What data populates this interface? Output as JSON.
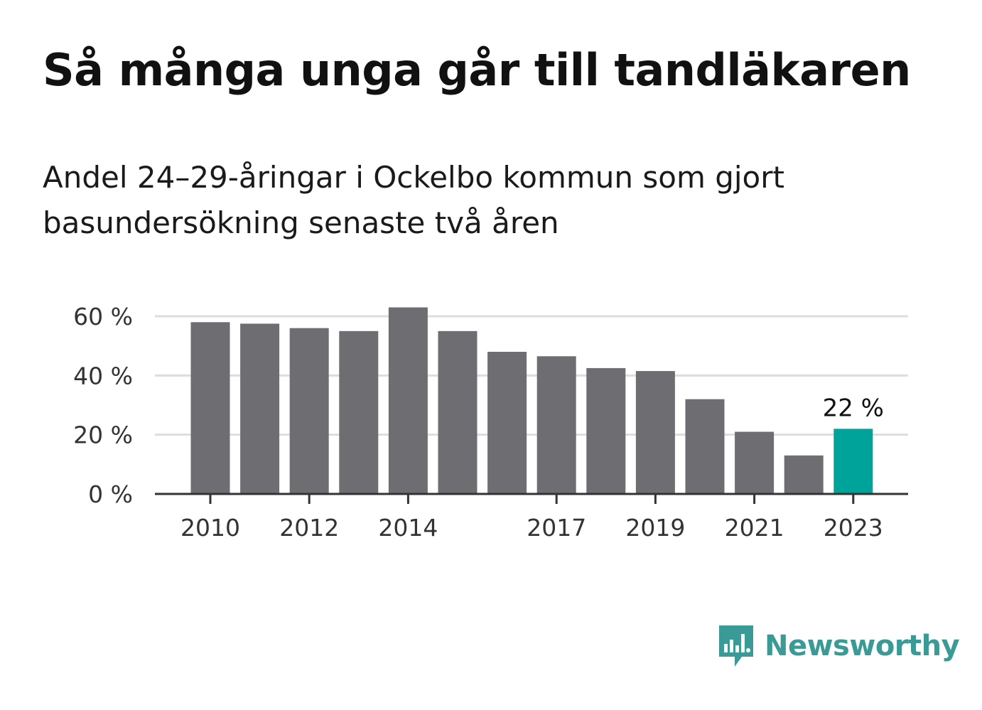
{
  "header": {
    "title": "Så många unga går till tandläkaren",
    "subtitle": "Andel 24–29-åringar i Ockelbo kommun som gjort basundersökning senaste två åren"
  },
  "brand": {
    "name": "Newsworthy",
    "color": "#3a9a96"
  },
  "colors": {
    "bar": "#6e6d72",
    "highlight": "#00a39a",
    "grid": "#dddddd",
    "axis": "#333333"
  },
  "chart_data": {
    "type": "bar",
    "categories": [
      "2010",
      "2011",
      "2012",
      "2013",
      "2014",
      "2015",
      "2016",
      "2017",
      "2018",
      "2019",
      "2020",
      "2021",
      "2022",
      "2023"
    ],
    "values": [
      58,
      57.5,
      56,
      55,
      63,
      55,
      48,
      46.5,
      42.5,
      41.5,
      32,
      21,
      13,
      22
    ],
    "highlight_index": 13,
    "data_labels": [
      {
        "index": 13,
        "text": "22 %"
      }
    ],
    "x_tick_labels": [
      "2010",
      "2012",
      "2014",
      "2017",
      "2019",
      "2021",
      "2023"
    ],
    "y_ticks": [
      0,
      20,
      40,
      60
    ],
    "y_tick_labels": [
      "0 %",
      "20 %",
      "40 %",
      "60 %"
    ],
    "ylim": [
      0,
      65
    ],
    "grid": true,
    "legend": "none",
    "xlabel": "",
    "ylabel": ""
  }
}
